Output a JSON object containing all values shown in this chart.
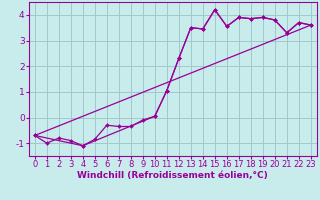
{
  "background_color": "#c8ecec",
  "grid_color": "#a0c8c8",
  "line_color": "#990099",
  "xlabel": "Windchill (Refroidissement éolien,°C)",
  "xlabel_fontsize": 6.5,
  "tick_fontsize": 6.0,
  "xlim": [
    -0.5,
    23.5
  ],
  "ylim": [
    -1.5,
    4.5
  ],
  "yticks": [
    -1,
    0,
    1,
    2,
    3,
    4
  ],
  "xticks": [
    0,
    1,
    2,
    3,
    4,
    5,
    6,
    7,
    8,
    9,
    10,
    11,
    12,
    13,
    14,
    15,
    16,
    17,
    18,
    19,
    20,
    21,
    22,
    23
  ],
  "line1_x": [
    0,
    1,
    2,
    3,
    4,
    5,
    6,
    7,
    8,
    9,
    10,
    11,
    12,
    13,
    14,
    15,
    16,
    17,
    18,
    19,
    20,
    21,
    22,
    23
  ],
  "line1_y": [
    -0.7,
    -1.0,
    -0.8,
    -0.9,
    -1.1,
    -0.85,
    -0.3,
    -0.35,
    -0.35,
    -0.1,
    0.05,
    1.05,
    2.3,
    3.5,
    3.45,
    4.2,
    3.55,
    3.9,
    3.85,
    3.9,
    3.8,
    3.3,
    3.7,
    3.6
  ],
  "line2_x": [
    0,
    4,
    10,
    11,
    12,
    13,
    14,
    15,
    16,
    17,
    18,
    19,
    20,
    21,
    22,
    23
  ],
  "line2_y": [
    -0.7,
    -1.1,
    0.05,
    1.05,
    2.3,
    3.5,
    3.45,
    4.2,
    3.55,
    3.9,
    3.85,
    3.9,
    3.8,
    3.3,
    3.7,
    3.6
  ],
  "line3_x": [
    0,
    23
  ],
  "line3_y": [
    -0.7,
    3.6
  ],
  "figwidth": 3.2,
  "figheight": 2.0,
  "dpi": 100
}
